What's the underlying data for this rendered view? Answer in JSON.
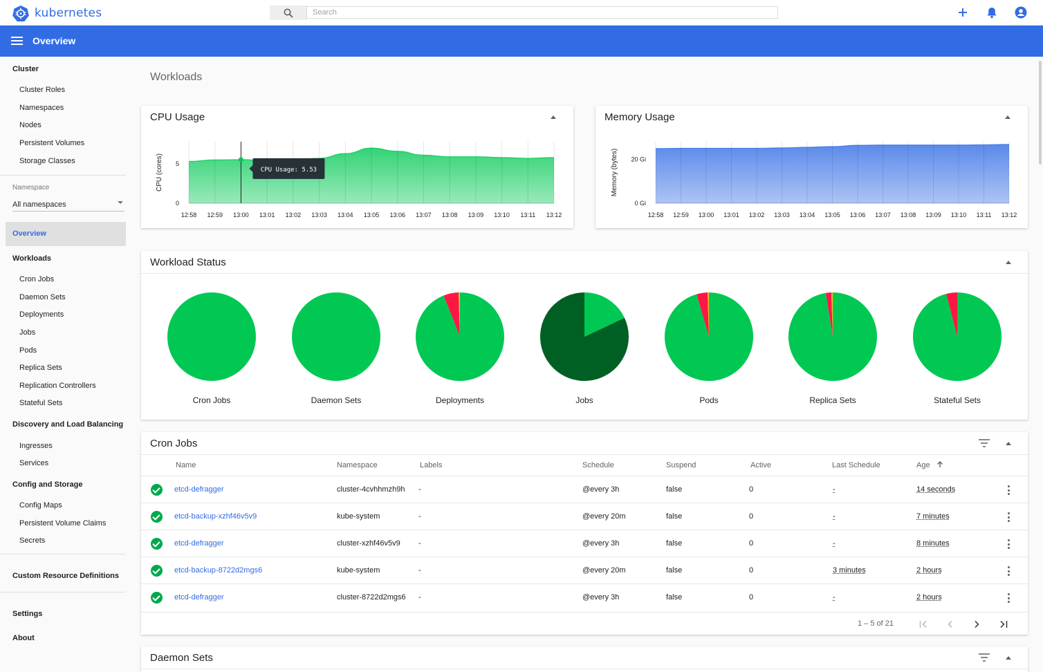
{
  "app": {
    "title": "kubernetes"
  },
  "search": {
    "placeholder": "Search"
  },
  "toolbar": {
    "title": "Overview"
  },
  "sidebar": {
    "cluster": {
      "label": "Cluster",
      "items": [
        "Cluster Roles",
        "Namespaces",
        "Nodes",
        "Persistent Volumes",
        "Storage Classes"
      ]
    },
    "namespace": {
      "label": "Namespace",
      "selected": "All namespaces"
    },
    "active": "Overview",
    "workloads": {
      "label": "Workloads",
      "items": [
        "Cron Jobs",
        "Daemon Sets",
        "Deployments",
        "Jobs",
        "Pods",
        "Replica Sets",
        "Replication Controllers",
        "Stateful Sets"
      ]
    },
    "discovery": {
      "label": "Discovery and Load Balancing",
      "items": [
        "Ingresses",
        "Services"
      ]
    },
    "config": {
      "label": "Config and Storage",
      "items": [
        "Config Maps",
        "Persistent Volume Claims",
        "Secrets"
      ]
    },
    "crd": "Custom Resource Definitions",
    "settings": "Settings",
    "about": "About"
  },
  "main": {
    "heading": "Workloads"
  },
  "cpu": {
    "title": "CPU Usage",
    "tooltip": "CPU Usage: 5.53",
    "chart_data": {
      "type": "area",
      "ylabel": "CPU (cores)",
      "yticks": [
        "5",
        "0"
      ],
      "ylim": [
        0,
        7.8
      ],
      "x": [
        "12:58",
        "12:59",
        "13:00",
        "13:01",
        "13:02",
        "13:03",
        "13:04",
        "13:05",
        "13:06",
        "13:07",
        "13:08",
        "13:09",
        "13:10",
        "13:11",
        "13:12"
      ],
      "values": [
        5.3,
        5.5,
        5.53,
        5.4,
        5.5,
        5.7,
        6.3,
        7.0,
        6.6,
        6.1,
        5.9,
        5.9,
        5.8,
        5.7,
        5.8
      ],
      "color": "#00c853"
    }
  },
  "memory": {
    "title": "Memory Usage",
    "chart_data": {
      "type": "area",
      "ylabel": "Memory (bytes)",
      "yticks": [
        "20 Gi",
        "0 Gi"
      ],
      "ylim": [
        0,
        28
      ],
      "x": [
        "12:58",
        "12:59",
        "13:00",
        "13:01",
        "13:02",
        "13:03",
        "13:04",
        "13:05",
        "13:06",
        "13:07",
        "13:08",
        "13:09",
        "13:10",
        "13:11",
        "13:12"
      ],
      "values": [
        24.9,
        25.0,
        25.0,
        25.0,
        25.0,
        25.2,
        25.5,
        25.8,
        26.4,
        26.5,
        26.5,
        26.5,
        26.5,
        26.6,
        26.8
      ],
      "color": "#326ce5"
    }
  },
  "status": {
    "title": "Workload Status",
    "colors": {
      "running": "#00c853",
      "failed": "#ff1744",
      "pending": "#ffad20",
      "succeeded": "#006024"
    },
    "chart_data": [
      {
        "type": "pie",
        "label": "Cron Jobs",
        "running": 1.0,
        "failed": 0,
        "pending": 0,
        "succeeded": 0
      },
      {
        "type": "pie",
        "label": "Daemon Sets",
        "running": 1.0,
        "failed": 0,
        "pending": 0,
        "succeeded": 0
      },
      {
        "type": "pie",
        "label": "Deployments",
        "running": 0.94,
        "failed": 0.055,
        "pending": 0.005,
        "succeeded": 0
      },
      {
        "type": "pie",
        "label": "Jobs",
        "running": 0.18,
        "failed": 0,
        "pending": 0,
        "succeeded": 0.82
      },
      {
        "type": "pie",
        "label": "Pods",
        "running": 0.955,
        "failed": 0.04,
        "pending": 0.005,
        "succeeded": 0
      },
      {
        "type": "pie",
        "label": "Replica Sets",
        "running": 0.975,
        "failed": 0.02,
        "pending": 0.005,
        "succeeded": 0
      },
      {
        "type": "pie",
        "label": "Stateful Sets",
        "running": 0.96,
        "failed": 0.04,
        "pending": 0,
        "succeeded": 0
      }
    ]
  },
  "cronjobs": {
    "title": "Cron Jobs",
    "columns": [
      "Name",
      "Namespace",
      "Labels",
      "Schedule",
      "Suspend",
      "Active",
      "Last Schedule",
      "Age"
    ],
    "rows": [
      {
        "name": "etcd-defragger",
        "namespace": "cluster-4cvhhmzh9h",
        "labels": "-",
        "schedule": "@every 3h",
        "suspend": "false",
        "active": "0",
        "last": "-",
        "age": "14 seconds"
      },
      {
        "name": "etcd-backup-xzhf46v5v9",
        "namespace": "kube-system",
        "labels": "-",
        "schedule": "@every 20m",
        "suspend": "false",
        "active": "0",
        "last": "-",
        "age": "7 minutes"
      },
      {
        "name": "etcd-defragger",
        "namespace": "cluster-xzhf46v5v9",
        "labels": "-",
        "schedule": "@every 3h",
        "suspend": "false",
        "active": "0",
        "last": "-",
        "age": "8 minutes"
      },
      {
        "name": "etcd-backup-8722d2mgs6",
        "namespace": "kube-system",
        "labels": "-",
        "schedule": "@every 20m",
        "suspend": "false",
        "active": "0",
        "last": "3 minutes",
        "age": "2 hours"
      },
      {
        "name": "etcd-defragger",
        "namespace": "cluster-8722d2mgs6",
        "labels": "-",
        "schedule": "@every 3h",
        "suspend": "false",
        "active": "0",
        "last": "-",
        "age": "2 hours"
      }
    ],
    "pager": "1 – 5 of 21"
  },
  "daemonsets": {
    "title": "Daemon Sets"
  }
}
